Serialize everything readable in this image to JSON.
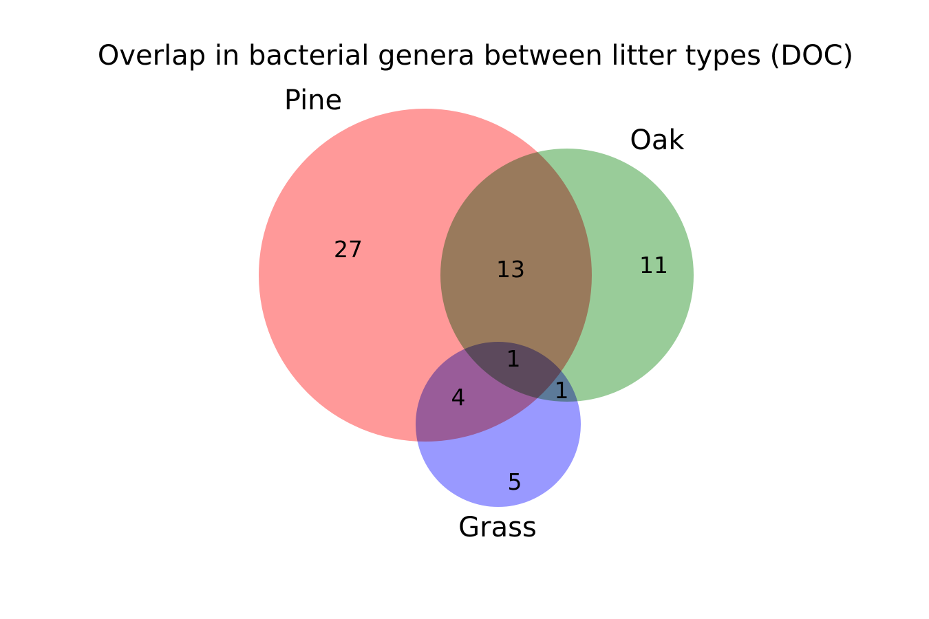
{
  "title": "Overlap in bacterial genera between litter types (DOC)",
  "colors": {
    "pine": "#ff9999",
    "oak": "#99cc99",
    "grass": "#9999ff"
  },
  "chart_data": {
    "type": "venn3",
    "title": "Overlap in bacterial genera between litter types (DOC)",
    "sets": [
      "Pine",
      "Oak",
      "Grass"
    ],
    "regions": {
      "pine_only": 27,
      "oak_only": 11,
      "grass_only": 5,
      "pine_oak": 13,
      "pine_grass": 4,
      "oak_grass": 1,
      "pine_oak_grass": 1
    }
  }
}
